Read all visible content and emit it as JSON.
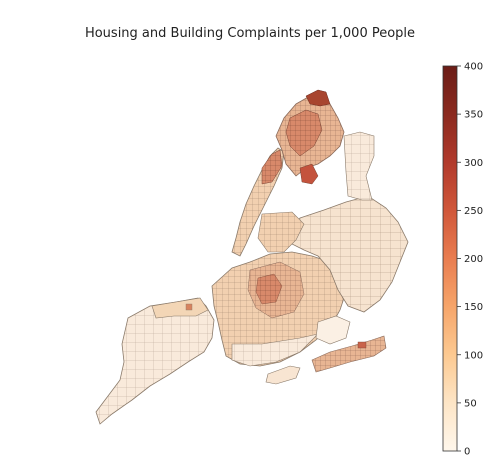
{
  "figure": {
    "title": "Housing and Building Complaints per 1,000 People"
  },
  "colorbar": {
    "min": 0,
    "max": 400,
    "ticks": [
      "400",
      "350",
      "300",
      "250",
      "200",
      "150",
      "100",
      "50",
      "0"
    ],
    "colors": [
      "#fff7ec",
      "#fde5c6",
      "#fcc991",
      "#f6a56a",
      "#e97d50",
      "#d0573a",
      "#b13a2c",
      "#8b2a1f",
      "#6b1d17"
    ]
  },
  "map": {
    "edge_color": "#8a7a6a",
    "regions": [
      "bronx",
      "manhattan",
      "queens",
      "brooklyn",
      "staten-island",
      "rockaways",
      "jfk"
    ]
  }
}
